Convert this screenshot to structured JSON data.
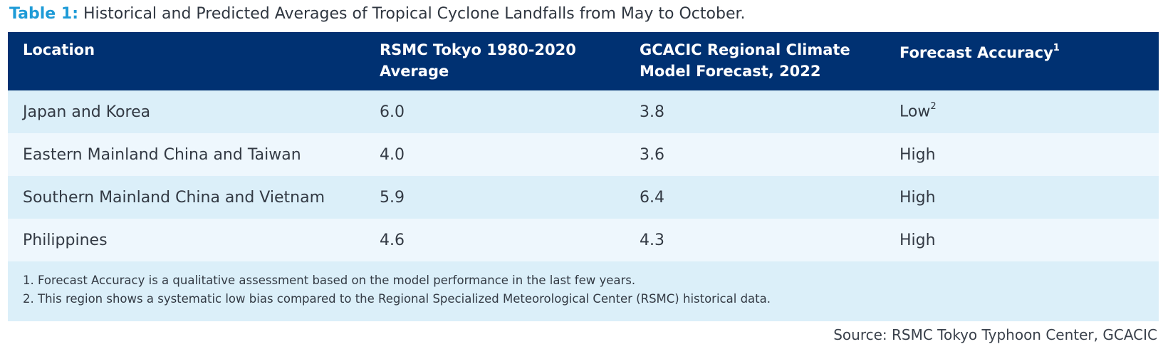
{
  "title": {
    "lead": "Table 1:",
    "text": " Historical and Predicted Averages of Tropical Cyclone Landfalls from May to October."
  },
  "table": {
    "headers": [
      {
        "text": "Location",
        "sup": ""
      },
      {
        "text": "RSMC Tokyo 1980-2020 Average",
        "sup": ""
      },
      {
        "text": "GCACIC Regional Climate Model Forecast, 2022",
        "sup": ""
      },
      {
        "text": "Forecast Accuracy",
        "sup": "1"
      }
    ],
    "rows": [
      {
        "location": "Japan and Korea",
        "historical": "6.0",
        "forecast": "3.8",
        "accuracy": "Low",
        "accuracy_sup": "2"
      },
      {
        "location": "Eastern Mainland China and Taiwan",
        "historical": "4.0",
        "forecast": "3.6",
        "accuracy": "High",
        "accuracy_sup": ""
      },
      {
        "location": "Southern Mainland China and Vietnam",
        "historical": "5.9",
        "forecast": "6.4",
        "accuracy": "High",
        "accuracy_sup": ""
      },
      {
        "location": "Philippines",
        "historical": "4.6",
        "forecast": "4.3",
        "accuracy": "High",
        "accuracy_sup": ""
      }
    ],
    "footnotes": [
      "1. Forecast Accuracy is a qualitative assessment based on the model performance in the last few years.",
      "2. This region shows a systematic low bias compared to the Regional Specialized Meteorological Center (RSMC) historical data."
    ]
  },
  "source": "Source: RSMC Tokyo Typhoon Center, GCACIC",
  "colors": {
    "header_bg": "#003172",
    "title_accent": "#1e9bd7",
    "row_dark": "#dbeff9",
    "row_light": "#eef7fd"
  }
}
